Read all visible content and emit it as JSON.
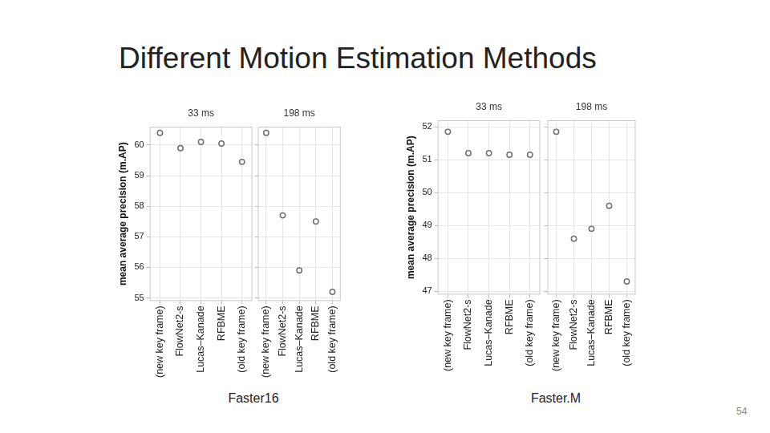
{
  "title": "Different Motion Estimation Methods",
  "page_number": "54",
  "figures": [
    {
      "caption": "Faster16"
    },
    {
      "caption": "Faster.M"
    }
  ],
  "chart_data": [
    {
      "type": "scatter",
      "title": "33 ms",
      "y_label": "mean average precision (m.AP)",
      "categories": [
        "(new key frame)",
        "FlowNet2-s",
        "Lucas–Kanade",
        "RFBME",
        "(old key frame)"
      ],
      "values": [
        60.4,
        59.9,
        60.1,
        60.05,
        59.45
      ],
      "ylim": [
        54.9,
        60.6
      ],
      "yticks": [
        55,
        56,
        57,
        58,
        59,
        60
      ],
      "grid": true,
      "color": "#707070",
      "marker": "circle",
      "line_style": "none"
    },
    {
      "type": "scatter",
      "title": "198 ms",
      "categories": [
        "(new key frame)",
        "FlowNet2-s",
        "Lucas–Kanade",
        "RFBME",
        "(old key frame)"
      ],
      "values": [
        60.4,
        57.7,
        55.9,
        57.5,
        55.2
      ],
      "ylim": [
        54.9,
        60.6
      ],
      "yticks": [
        55,
        56,
        57,
        58,
        59,
        60
      ],
      "grid": true,
      "tick_labels": "x",
      "color": "#707070",
      "marker": "circle",
      "line_style": "none"
    },
    {
      "type": "scatter",
      "title": "33 ms",
      "y_label": "mean average precision (m.AP)",
      "categories": [
        "(new key frame)",
        "FlowNet2-s",
        "Lucas–Kanade",
        "RFBME",
        "(old key frame)"
      ],
      "values": [
        51.85,
        51.2,
        51.2,
        51.15,
        51.15
      ],
      "ylim": [
        46.9,
        52.2
      ],
      "yticks": [
        47,
        48,
        49,
        50,
        51,
        52
      ],
      "grid": true,
      "color": "#707070",
      "marker": "circle",
      "line_style": "none"
    },
    {
      "type": "scatter",
      "title": "198 ms",
      "categories": [
        "(new key frame)",
        "FlowNet2-s",
        "Lucas–Kanade",
        "RFBME",
        "(old key frame)"
      ],
      "values": [
        51.85,
        48.6,
        48.9,
        49.6,
        47.3
      ],
      "ylim": [
        46.9,
        52.2
      ],
      "yticks": [
        47,
        48,
        49,
        50,
        51,
        52
      ],
      "grid": true,
      "tick_labels": "x",
      "color": "#707070",
      "marker": "circle",
      "line_style": "none"
    }
  ]
}
